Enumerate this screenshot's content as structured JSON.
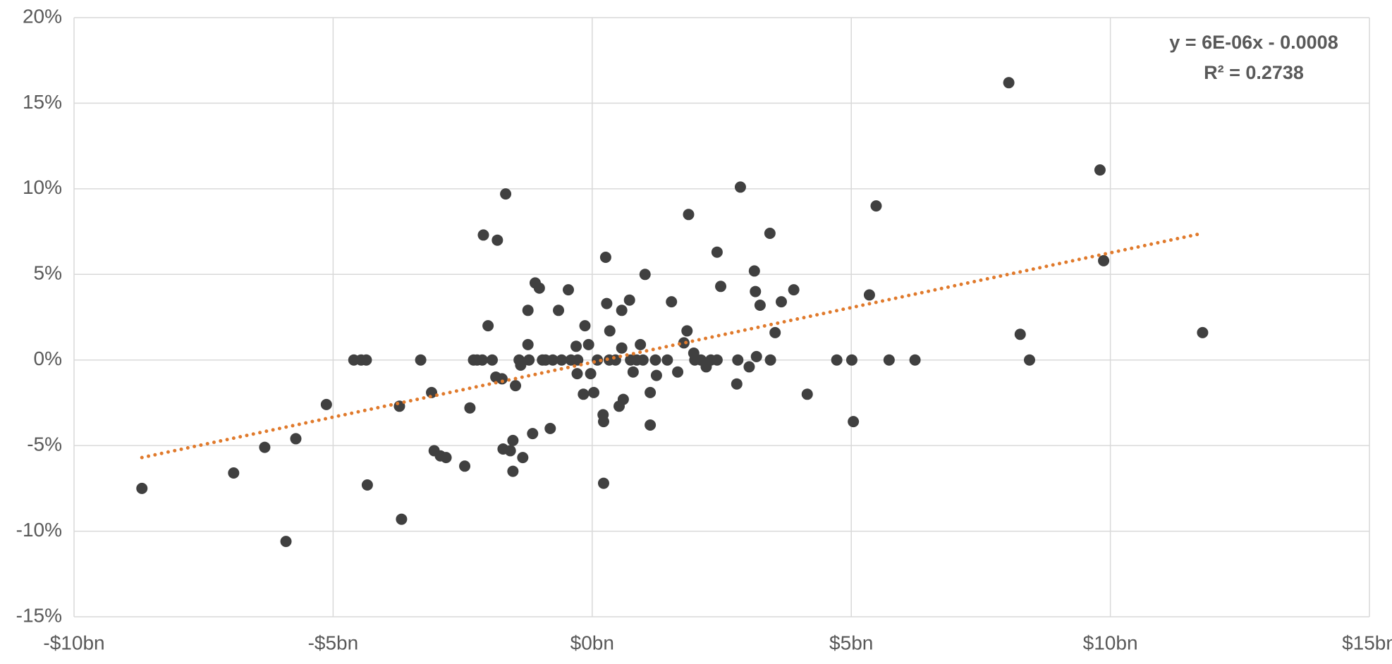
{
  "chart_data": {
    "type": "scatter",
    "series": [
      {
        "color": "#404040",
        "x": [
          -8.69,
          -6.92,
          -6.32,
          -5.91,
          -5.72,
          -5.13,
          -4.6,
          -4.46,
          -4.36,
          -4.34,
          -3.72,
          -3.68,
          -3.31,
          -3.1,
          -3.05,
          -2.93,
          -2.82,
          -2.46,
          -2.36,
          -2.29,
          -2.22,
          -2.12,
          -2.1,
          -2.01,
          -1.93,
          -1.86,
          -1.83,
          -1.74,
          -1.72,
          -1.67,
          -1.58,
          -1.53,
          -1.53,
          -1.48,
          -1.41,
          -1.38,
          -1.34,
          -1.24,
          -1.24,
          -1.22,
          -1.15,
          -1.1,
          -1.02,
          -0.96,
          -0.9,
          -0.81,
          -0.76,
          -0.65,
          -0.59,
          -0.46,
          -0.41,
          -0.31,
          -0.29,
          -0.28,
          -0.17,
          -0.14,
          -0.07,
          -0.03,
          0.03,
          0.1,
          0.21,
          0.22,
          0.22,
          0.26,
          0.28,
          0.33,
          0.34,
          0.45,
          0.52,
          0.57,
          0.57,
          0.6,
          0.72,
          0.74,
          0.79,
          0.86,
          0.93,
          0.98,
          1.02,
          1.12,
          1.12,
          1.22,
          1.24,
          1.45,
          1.53,
          1.65,
          1.77,
          1.83,
          1.86,
          1.96,
          1.98,
          2.1,
          2.2,
          2.29,
          2.41,
          2.41,
          2.48,
          2.79,
          2.81,
          2.86,
          3.03,
          3.13,
          3.15,
          3.17,
          3.24,
          3.43,
          3.44,
          3.53,
          3.65,
          3.89,
          4.15,
          4.72,
          5.01,
          5.04,
          5.35,
          5.48,
          5.73,
          6.23,
          8.04,
          8.26,
          8.44,
          9.8,
          9.87,
          11.78
        ],
        "values": [
          -7.5,
          -6.6,
          -5.1,
          -10.6,
          -4.6,
          -2.6,
          0,
          0,
          0,
          -7.3,
          -2.7,
          -9.3,
          0,
          -1.9,
          -5.3,
          -5.6,
          -5.7,
          -6.2,
          -2.8,
          0,
          0,
          0,
          7.3,
          2.0,
          0,
          -1.0,
          7.0,
          -1.1,
          -5.2,
          9.7,
          -5.3,
          -4.7,
          -6.5,
          -1.5,
          0,
          -0.3,
          -5.7,
          2.9,
          0.9,
          0,
          -4.3,
          4.5,
          4.2,
          0,
          0,
          -4.0,
          0,
          2.9,
          0,
          4.1,
          0,
          0.8,
          -0.8,
          0,
          -2.0,
          2.0,
          0.9,
          -0.8,
          -1.9,
          0,
          -3.2,
          -3.6,
          -7.2,
          6.0,
          3.3,
          0,
          1.7,
          0,
          -2.7,
          2.9,
          0.7,
          -2.3,
          3.5,
          0,
          -0.7,
          0,
          0.9,
          0,
          5.0,
          -1.9,
          -3.8,
          0,
          -0.9,
          0,
          3.4,
          -0.7,
          1.0,
          1.7,
          8.5,
          0.4,
          0,
          0,
          -0.4,
          0,
          6.3,
          0,
          4.3,
          -1.4,
          0,
          10.1,
          -0.4,
          5.2,
          4.0,
          0.2,
          3.2,
          7.4,
          0,
          1.6,
          3.4,
          4.1,
          -2.0,
          0,
          0,
          -3.6,
          3.8,
          9.0,
          0,
          0,
          16.2,
          1.5,
          0,
          11.1,
          5.8,
          1.6
        ]
      }
    ],
    "trendline": {
      "color": "#e07a2c",
      "x": [
        -8.69,
        11.78
      ],
      "values": [
        -5.7,
        7.4
      ],
      "equation": "y = 6E-06x - 0.0008",
      "r_squared": "R² = 0.2738"
    },
    "xlim": [
      -10,
      15
    ],
    "xticks": [
      {
        "value": -10,
        "label": "-$10bn"
      },
      {
        "value": -5,
        "label": "-$5bn"
      },
      {
        "value": 0,
        "label": "$0bn"
      },
      {
        "value": 5,
        "label": "$5bn"
      },
      {
        "value": 10,
        "label": "$10bn"
      },
      {
        "value": 15,
        "label": "$15bn"
      }
    ],
    "ylim": [
      -15,
      20
    ],
    "yticks": [
      {
        "value": -15,
        "label": "-15%"
      },
      {
        "value": -10,
        "label": "-10%"
      },
      {
        "value": -5,
        "label": "-5%"
      },
      {
        "value": 0,
        "label": "0%"
      },
      {
        "value": 5,
        "label": "5%"
      },
      {
        "value": 10,
        "label": "10%"
      },
      {
        "value": 15,
        "label": "15%"
      },
      {
        "value": 20,
        "label": "20%"
      }
    ],
    "grid": true
  }
}
